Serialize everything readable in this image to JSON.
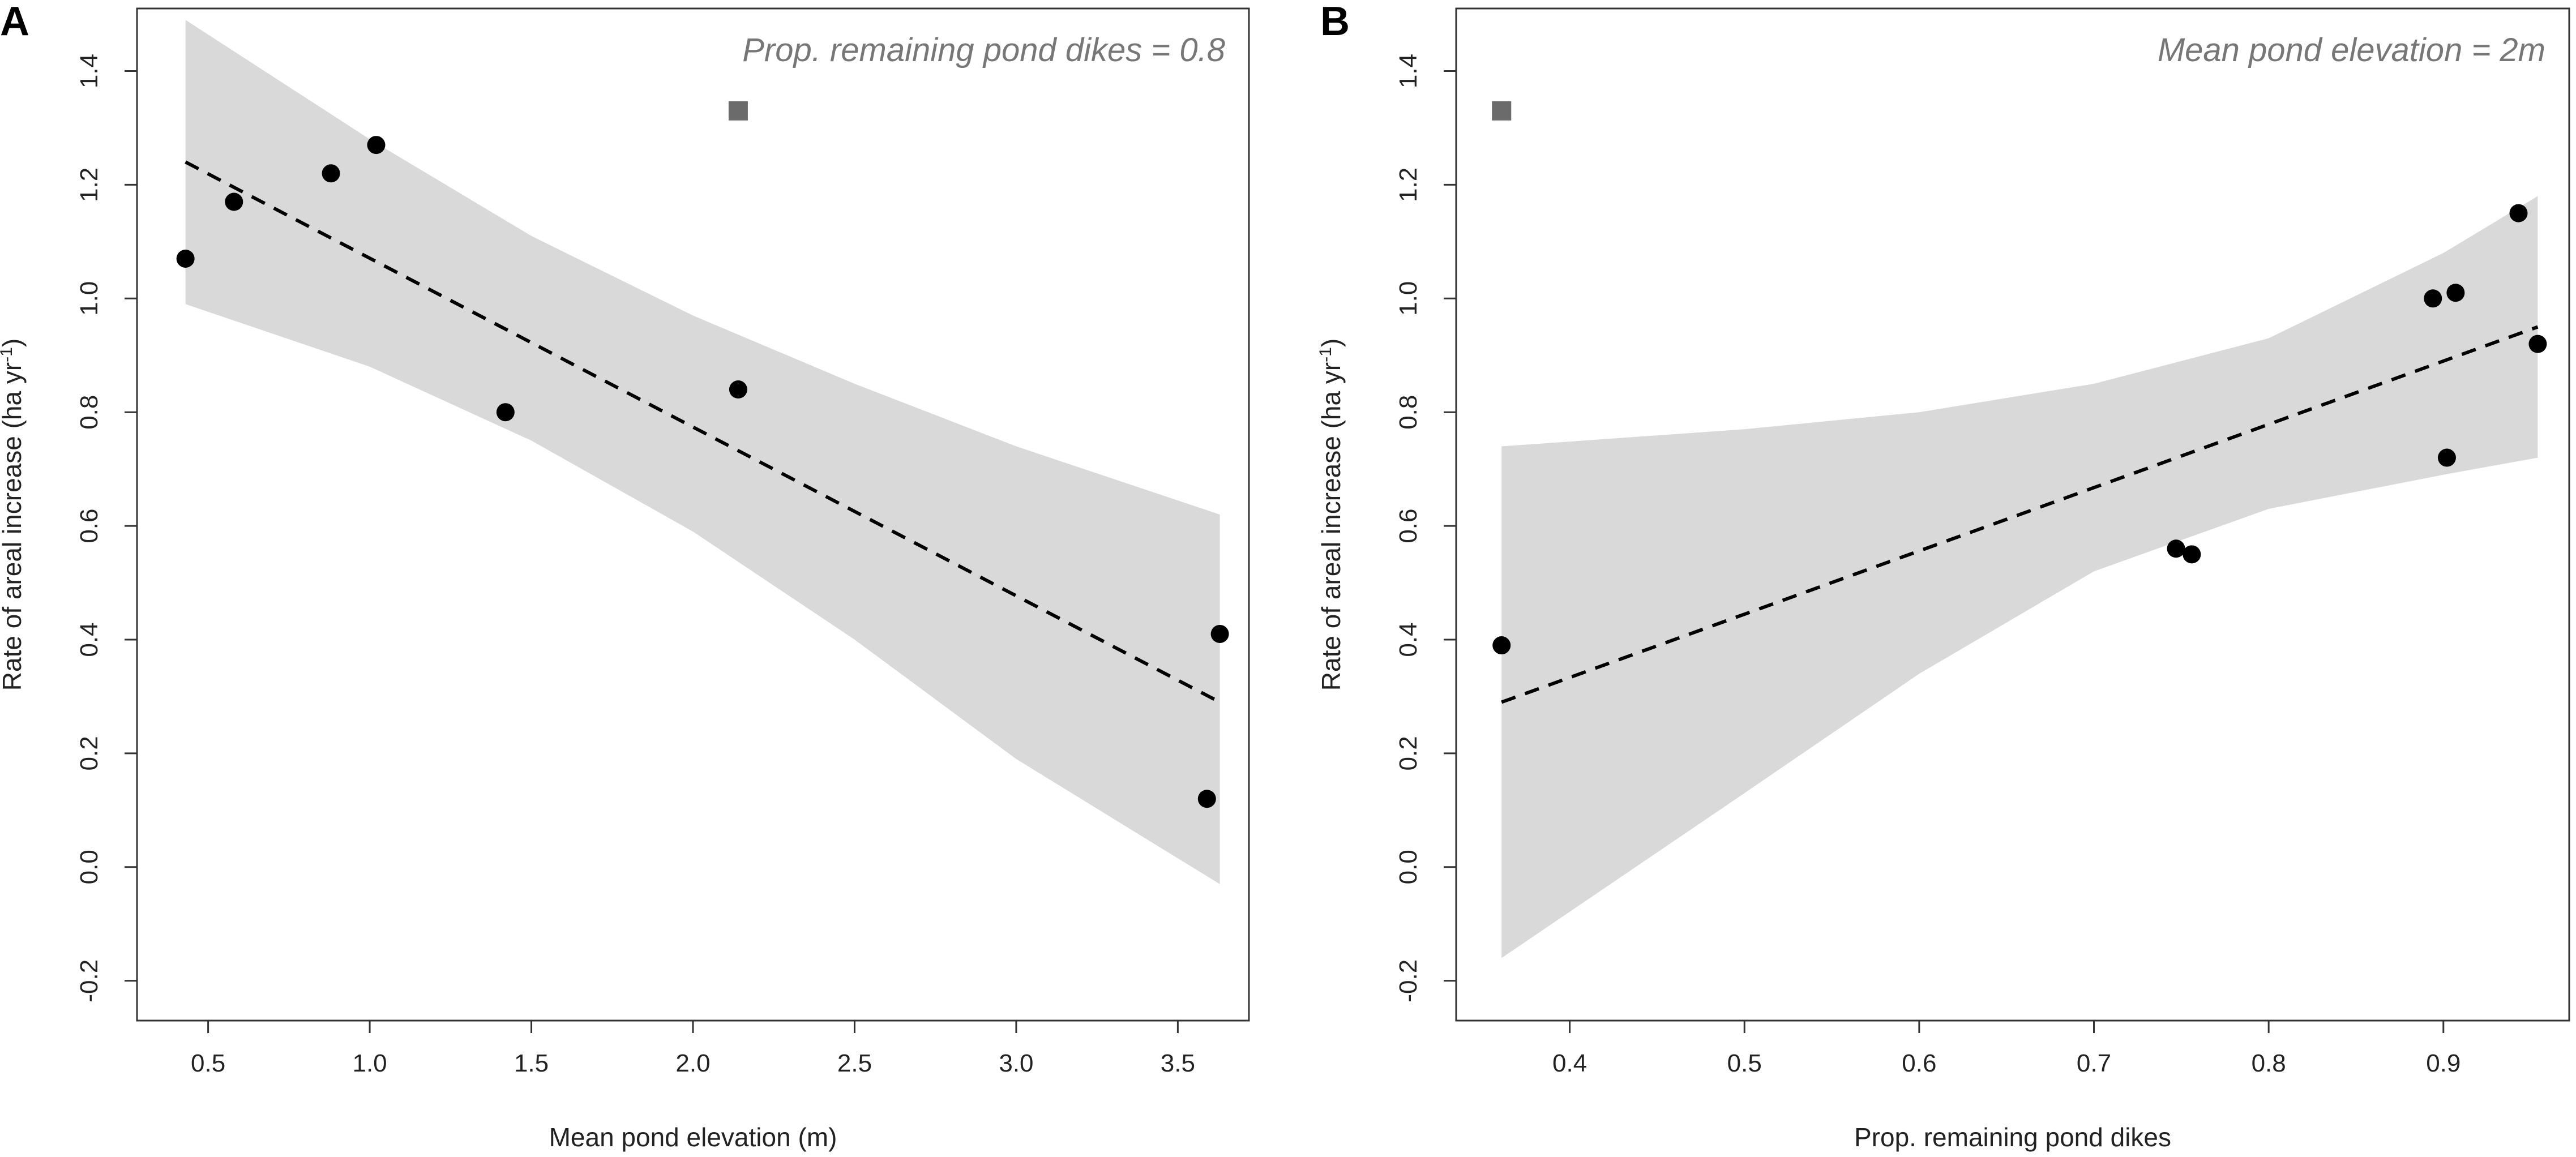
{
  "chart_data": [
    {
      "type": "scatter",
      "panel_label": "A",
      "annotation": "Prop. remaining pond dikes = 0.8",
      "xlabel": "Mean pond elevation (m)",
      "ylabel_main": "Rate of areal increase (ha yr",
      "ylabel_sup": "-1",
      "ylabel_end": ")",
      "xlim": [
        0.28,
        3.72
      ],
      "ylim": [
        -0.27,
        1.51
      ],
      "xticks": [
        0.5,
        1.0,
        1.5,
        2.0,
        2.5,
        3.0,
        3.5
      ],
      "xtick_labels": [
        "0.5",
        "1.0",
        "1.5",
        "2.0",
        "2.5",
        "3.0",
        "3.5"
      ],
      "yticks": [
        -0.2,
        0.0,
        0.2,
        0.4,
        0.6,
        0.8,
        1.0,
        1.2,
        1.4
      ],
      "ytick_labels": [
        "-0.2",
        "0.0",
        "0.2",
        "0.4",
        "0.6",
        "0.8",
        "1.0",
        "1.2",
        "1.4"
      ],
      "points": [
        {
          "x": 0.43,
          "y": 1.07
        },
        {
          "x": 0.58,
          "y": 1.17
        },
        {
          "x": 0.88,
          "y": 1.22
        },
        {
          "x": 1.02,
          "y": 1.27
        },
        {
          "x": 1.42,
          "y": 0.8
        },
        {
          "x": 2.14,
          "y": 0.84
        },
        {
          "x": 3.59,
          "y": 0.12
        },
        {
          "x": 3.63,
          "y": 0.41
        }
      ],
      "outlier": {
        "x": 2.14,
        "y": 1.33
      },
      "fit_line": {
        "x": [
          0.43,
          3.63
        ],
        "y": [
          1.24,
          0.29
        ]
      },
      "ci_x": [
        0.43,
        1.0,
        1.5,
        2.0,
        2.5,
        3.0,
        3.63
      ],
      "ci_upper": [
        1.49,
        1.28,
        1.11,
        0.97,
        0.85,
        0.74,
        0.62
      ],
      "ci_lower": [
        0.99,
        0.88,
        0.75,
        0.59,
        0.4,
        0.19,
        -0.03
      ]
    },
    {
      "type": "scatter",
      "panel_label": "B",
      "annotation": "Mean pond elevation = 2m",
      "xlabel": "Prop. remaining pond dikes",
      "ylabel_main": "Rate of areal increase (ha yr",
      "ylabel_sup": "-1",
      "ylabel_end": ")",
      "xlim": [
        0.335,
        0.972
      ],
      "ylim": [
        -0.27,
        1.51
      ],
      "xticks": [
        0.4,
        0.5,
        0.6,
        0.7,
        0.8,
        0.9
      ],
      "xtick_labels": [
        "0.4",
        "0.5",
        "0.6",
        "0.7",
        "0.8",
        "0.9"
      ],
      "yticks": [
        -0.2,
        0.0,
        0.2,
        0.4,
        0.6,
        0.8,
        1.0,
        1.2,
        1.4
      ],
      "ytick_labels": [
        "-0.2",
        "0.0",
        "0.2",
        "0.4",
        "0.6",
        "0.8",
        "1.0",
        "1.2",
        "1.4"
      ],
      "points": [
        {
          "x": 0.361,
          "y": 0.39
        },
        {
          "x": 0.747,
          "y": 0.56
        },
        {
          "x": 0.756,
          "y": 0.55
        },
        {
          "x": 0.894,
          "y": 1.0
        },
        {
          "x": 0.902,
          "y": 0.72
        },
        {
          "x": 0.907,
          "y": 1.01
        },
        {
          "x": 0.943,
          "y": 1.15
        },
        {
          "x": 0.954,
          "y": 0.92
        }
      ],
      "outlier": {
        "x": 0.361,
        "y": 1.33
      },
      "fit_line": {
        "x": [
          0.361,
          0.954
        ],
        "y": [
          0.29,
          0.95
        ]
      },
      "ci_x": [
        0.361,
        0.5,
        0.6,
        0.7,
        0.8,
        0.9,
        0.954
      ],
      "ci_upper": [
        0.74,
        0.77,
        0.8,
        0.85,
        0.93,
        1.08,
        1.18
      ],
      "ci_lower": [
        -0.16,
        0.13,
        0.34,
        0.52,
        0.63,
        0.69,
        0.72
      ]
    }
  ]
}
